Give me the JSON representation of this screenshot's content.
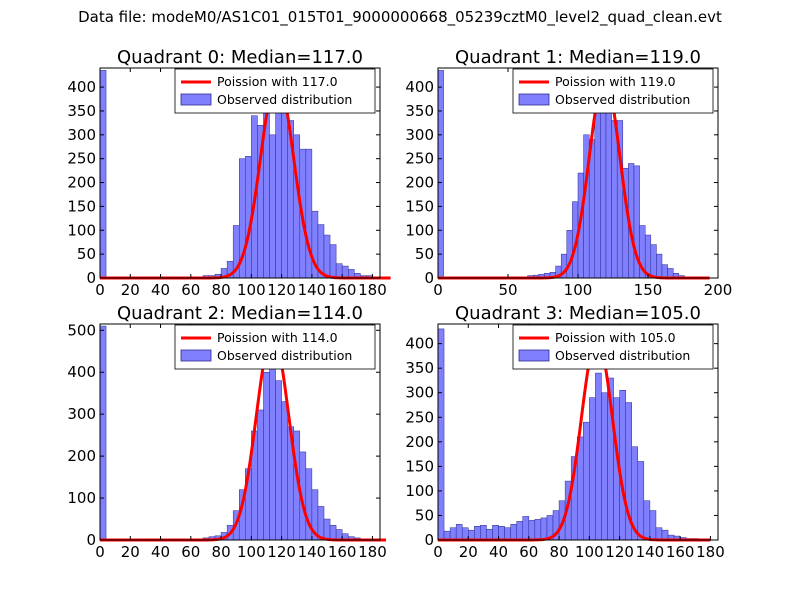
{
  "figure": {
    "suptitle": "Data file: modeM0/AS1C01_015T01_9000000668_05239cztM0_level2_quad_clean.evt"
  },
  "colors": {
    "bar_fill": "#8080ff",
    "bar_edge": "#2b2b8f",
    "poisson_line": "#ff0000",
    "axes": "#000000",
    "legend_edge": "#000000"
  },
  "chart_data": [
    {
      "type": "bar",
      "title": "Quadrant 0: Median=117.0",
      "xlim": [
        0,
        185
      ],
      "ylim": [
        0,
        440
      ],
      "xticks": [
        0,
        20,
        40,
        60,
        80,
        100,
        120,
        140,
        160,
        180
      ],
      "xticklabels": [
        "0",
        "20",
        "40",
        "60",
        "80",
        "100",
        "120",
        "140",
        "160",
        "180"
      ],
      "yticks": [
        0,
        50,
        100,
        150,
        200,
        250,
        300,
        350,
        400
      ],
      "yticklabels": [
        "0",
        "50",
        "100",
        "150",
        "200",
        "250",
        "300",
        "350",
        "400"
      ],
      "legend": [
        "Poission with 117.0",
        "Observed distribution"
      ],
      "legend_loc": "top-right",
      "poisson_mean": 117,
      "poisson_peak": 420,
      "bin_width": 4,
      "bins_start": [
        0,
        4,
        60,
        64,
        68,
        72,
        76,
        80,
        84,
        88,
        92,
        96,
        100,
        104,
        108,
        112,
        116,
        120,
        124,
        128,
        132,
        136,
        140,
        144,
        148,
        152,
        156,
        160,
        164,
        168,
        172,
        176
      ],
      "counts": [
        435,
        1,
        1,
        2,
        5,
        5,
        8,
        20,
        35,
        110,
        250,
        255,
        340,
        320,
        360,
        300,
        360,
        380,
        330,
        300,
        270,
        270,
        140,
        112,
        90,
        70,
        30,
        25,
        18,
        10,
        5,
        5
      ]
    },
    {
      "type": "bar",
      "title": "Quadrant 1: Median=119.0",
      "xlim": [
        0,
        200
      ],
      "ylim": [
        0,
        440
      ],
      "xticks": [
        0,
        50,
        100,
        150,
        200
      ],
      "xticklabels": [
        "0",
        "50",
        "100",
        "150",
        "200"
      ],
      "yticks": [
        0,
        50,
        100,
        150,
        200,
        250,
        300,
        350,
        400
      ],
      "yticklabels": [
        "0",
        "50",
        "100",
        "150",
        "200",
        "250",
        "300",
        "350",
        "400"
      ],
      "legend": [
        "Poission with 119.0",
        "Observed distribution"
      ],
      "legend_loc": "top-right",
      "poisson_mean": 119,
      "poisson_peak": 420,
      "bin_width": 4,
      "bins_start": [
        0,
        4,
        64,
        68,
        72,
        76,
        80,
        84,
        88,
        92,
        96,
        100,
        104,
        108,
        112,
        116,
        120,
        124,
        128,
        132,
        136,
        140,
        144,
        148,
        152,
        156,
        160,
        164,
        168,
        172
      ],
      "counts": [
        435,
        1,
        5,
        6,
        8,
        10,
        12,
        25,
        50,
        100,
        160,
        220,
        300,
        290,
        400,
        410,
        360,
        330,
        330,
        230,
        240,
        235,
        110,
        90,
        70,
        50,
        28,
        20,
        10,
        5
      ]
    },
    {
      "type": "bar",
      "title": "Quadrant 2: Median=114.0",
      "xlim": [
        0,
        185
      ],
      "ylim": [
        0,
        515
      ],
      "xticks": [
        0,
        20,
        40,
        60,
        80,
        100,
        120,
        140,
        160,
        180
      ],
      "xticklabels": [
        "0",
        "20",
        "40",
        "60",
        "80",
        "100",
        "120",
        "140",
        "160",
        "180"
      ],
      "yticks": [
        0,
        100,
        200,
        300,
        400,
        500
      ],
      "yticklabels": [
        "0",
        "100",
        "200",
        "300",
        "400",
        "500"
      ],
      "legend": [
        "Poission with 114.0",
        "Observed distribution"
      ],
      "legend_loc": "top-right",
      "poisson_mean": 114,
      "poisson_peak": 490,
      "bin_width": 4,
      "bins_start": [
        0,
        4,
        64,
        68,
        72,
        76,
        80,
        84,
        88,
        92,
        96,
        100,
        104,
        108,
        112,
        116,
        120,
        124,
        128,
        132,
        136,
        140,
        144,
        148,
        152,
        156,
        160,
        164,
        168
      ],
      "counts": [
        510,
        1,
        3,
        5,
        8,
        10,
        18,
        35,
        70,
        120,
        170,
        260,
        310,
        400,
        420,
        380,
        330,
        270,
        260,
        210,
        170,
        120,
        80,
        50,
        35,
        25,
        15,
        8,
        5
      ]
    },
    {
      "type": "bar",
      "title": "Quadrant 3: Median=105.0",
      "xlim": [
        0,
        185
      ],
      "ylim": [
        0,
        440
      ],
      "xticks": [
        0,
        20,
        40,
        60,
        80,
        100,
        120,
        140,
        160,
        180
      ],
      "xticklabels": [
        "0",
        "20",
        "40",
        "60",
        "80",
        "100",
        "120",
        "140",
        "160",
        "180"
      ],
      "yticks": [
        0,
        50,
        100,
        150,
        200,
        250,
        300,
        350,
        400
      ],
      "yticklabels": [
        "0",
        "50",
        "100",
        "150",
        "200",
        "250",
        "300",
        "350",
        "400"
      ],
      "legend": [
        "Poission with 105.0",
        "Observed distribution"
      ],
      "legend_loc": "top-right",
      "poisson_mean": 105,
      "poisson_peak": 410,
      "bin_width": 4,
      "bins_start": [
        0,
        4,
        8,
        12,
        16,
        20,
        24,
        28,
        32,
        36,
        40,
        44,
        48,
        52,
        56,
        60,
        64,
        68,
        72,
        76,
        80,
        84,
        88,
        92,
        96,
        100,
        104,
        108,
        112,
        116,
        120,
        124,
        128,
        132,
        136,
        140,
        144,
        148,
        152,
        156,
        160,
        164,
        168
      ],
      "counts": [
        430,
        18,
        25,
        32,
        25,
        20,
        28,
        30,
        22,
        30,
        28,
        25,
        32,
        38,
        48,
        40,
        42,
        45,
        50,
        60,
        80,
        120,
        170,
        210,
        240,
        290,
        340,
        300,
        330,
        290,
        305,
        280,
        190,
        160,
        80,
        60,
        25,
        20,
        10,
        8,
        5,
        3,
        3
      ]
    }
  ]
}
